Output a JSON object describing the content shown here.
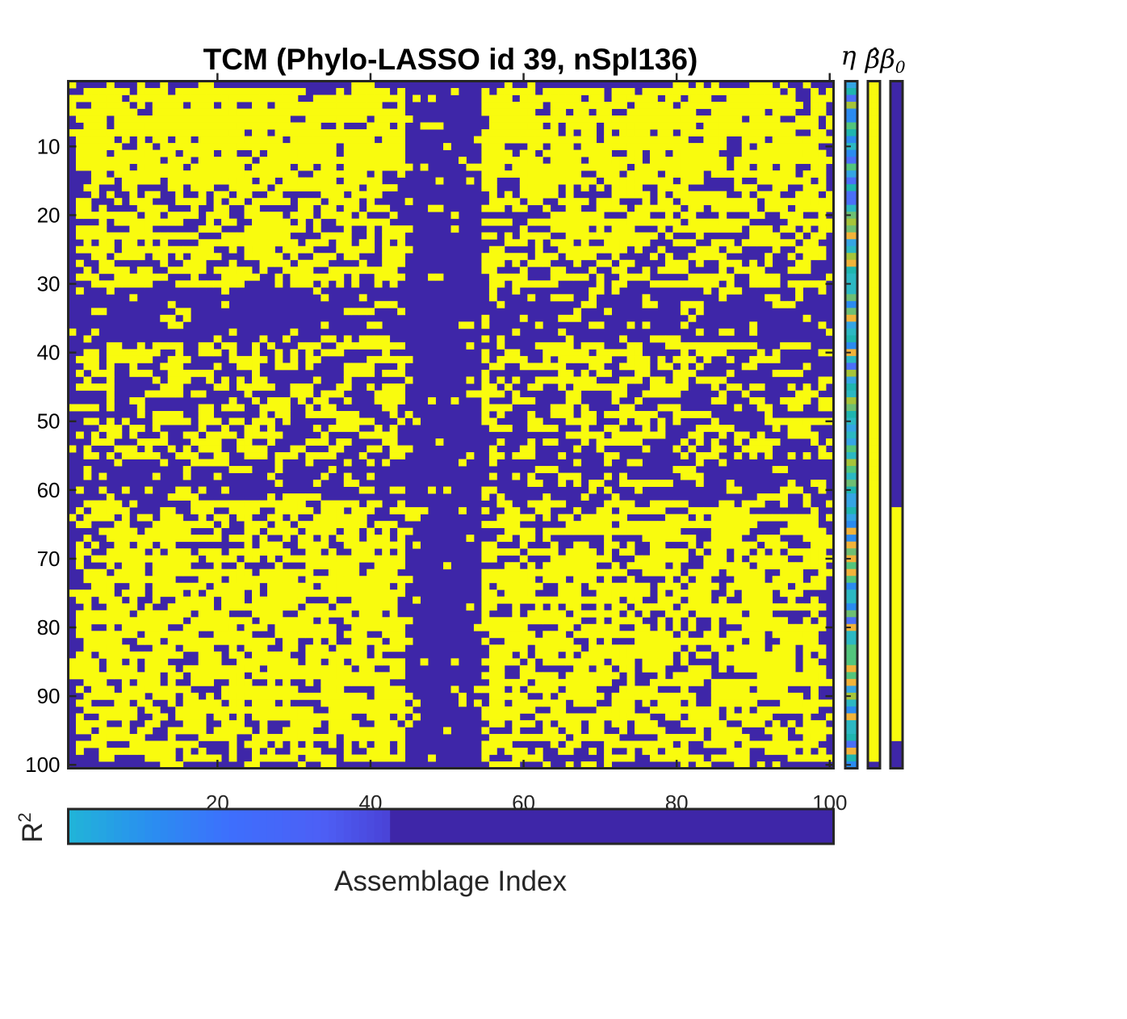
{
  "chart_data": [
    {
      "type": "heatmap",
      "title": "TCM (Phylo-LASSO id 39, nSpl136)",
      "rows": 100,
      "cols": 100,
      "yticks": [
        10,
        20,
        30,
        40,
        50,
        60,
        70,
        80,
        90,
        100
      ],
      "xticks": [
        20,
        40,
        60,
        80,
        100
      ],
      "colormap": "parula",
      "values_encoding": "binary matrix (0 = dark blue, 1 = yellow); dense clusters in the upper-left and right blocks, sparse central column band around assemblages 44-55 and sparse rows around 30-37, 56-61",
      "colors": {
        "zero": "#3e26a8",
        "one": "#f9fb0e"
      }
    },
    {
      "type": "heatmap",
      "name": "η",
      "label": "η",
      "rows": 100,
      "description": "per-row continuous values, teal/green/blue/orange"
    },
    {
      "type": "heatmap",
      "name": "β̂",
      "label": "β̂",
      "rows": 100,
      "description": "rows 1-100 mostly yellow"
    },
    {
      "type": "heatmap",
      "name": "β0",
      "label": "β₀",
      "rows": 100,
      "values": {
        "rows_1_62": 0,
        "rows_63_96": 1,
        "rows_97_100": 0
      }
    },
    {
      "type": "heatmap",
      "name": "R2 colorbar",
      "ylabel": "R²",
      "xlabel": "Assemblage Index",
      "xticks": [
        20,
        40,
        60,
        80,
        100
      ],
      "gradient_until": 42,
      "values": [
        0.82,
        0.8,
        0.78,
        0.76,
        0.74,
        0.72,
        0.7,
        0.68,
        0.66,
        0.64,
        0.62,
        0.6,
        0.58,
        0.56,
        0.54,
        0.52,
        0.5,
        0.48,
        0.46,
        0.44,
        0.42,
        0.4,
        0.38,
        0.36,
        0.34,
        0.32,
        0.3,
        0.28,
        0.26,
        0.24,
        0.22,
        0.2,
        0.18,
        0.16,
        0.14,
        0.12,
        0.1,
        0.08,
        0.06,
        0.04,
        0.02,
        0.01
      ]
    }
  ],
  "labels": {
    "title": "TCM (Phylo-LASSO id 39, nSpl136)",
    "eta": "η",
    "beta_hat": "β̂",
    "beta0_main": "β",
    "beta0_sub": "0",
    "r2_main": "R",
    "r2_sup": "2",
    "xlabel": "Assemblage Index"
  }
}
